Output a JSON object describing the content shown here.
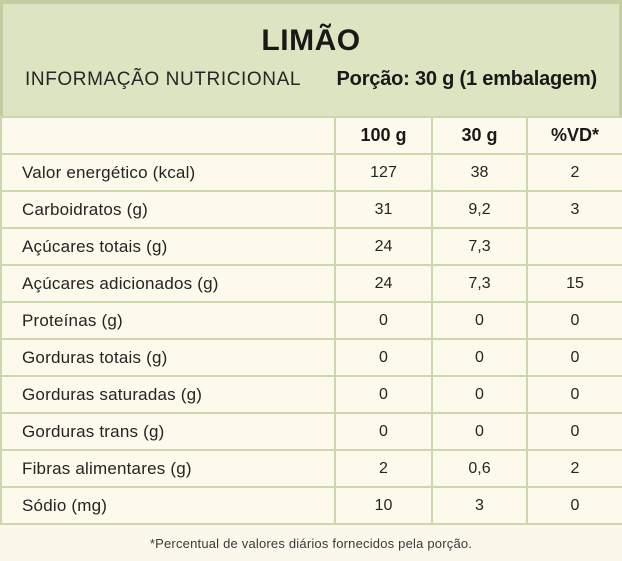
{
  "header": {
    "title": "LIMÃO",
    "subtitle": "INFORMAÇÃO NUTRICIONAL",
    "portion": "Porção: 30 g (1 embalagem)"
  },
  "table": {
    "columns": [
      "",
      "100 g",
      "30 g",
      "%VD*"
    ],
    "rows": [
      {
        "label": "Valor energético (kcal)",
        "per100g": "127",
        "per30g": "38",
        "vd": "2"
      },
      {
        "label": "Carboidratos (g)",
        "per100g": "31",
        "per30g": "9,2",
        "vd": "3"
      },
      {
        "label": "Açúcares totais (g)",
        "per100g": "24",
        "per30g": "7,3",
        "vd": ""
      },
      {
        "label": "Açúcares adicionados (g)",
        "per100g": "24",
        "per30g": "7,3",
        "vd": "15"
      },
      {
        "label": "Proteínas (g)",
        "per100g": "0",
        "per30g": "0",
        "vd": "0"
      },
      {
        "label": "Gorduras totais (g)",
        "per100g": "0",
        "per30g": "0",
        "vd": "0"
      },
      {
        "label": "Gorduras saturadas (g)",
        "per100g": "0",
        "per30g": "0",
        "vd": "0"
      },
      {
        "label": "Gorduras trans (g)",
        "per100g": "0",
        "per30g": "0",
        "vd": "0"
      },
      {
        "label": "Fibras alimentares (g)",
        "per100g": "2",
        "per30g": "0,6",
        "vd": "2"
      },
      {
        "label": "Sódio (mg)",
        "per100g": "10",
        "per30g": "3",
        "vd": "0"
      }
    ]
  },
  "footer": {
    "note": "*Percentual de valores diários fornecidos pela porção."
  },
  "colors": {
    "header_bg": "#dde4c2",
    "header_border": "#c3cea0",
    "cell_bg": "#fdf9ec",
    "table_border": "#ccd8ab",
    "footer_bg": "#fbf7eb",
    "text": "#1e1e1c"
  }
}
